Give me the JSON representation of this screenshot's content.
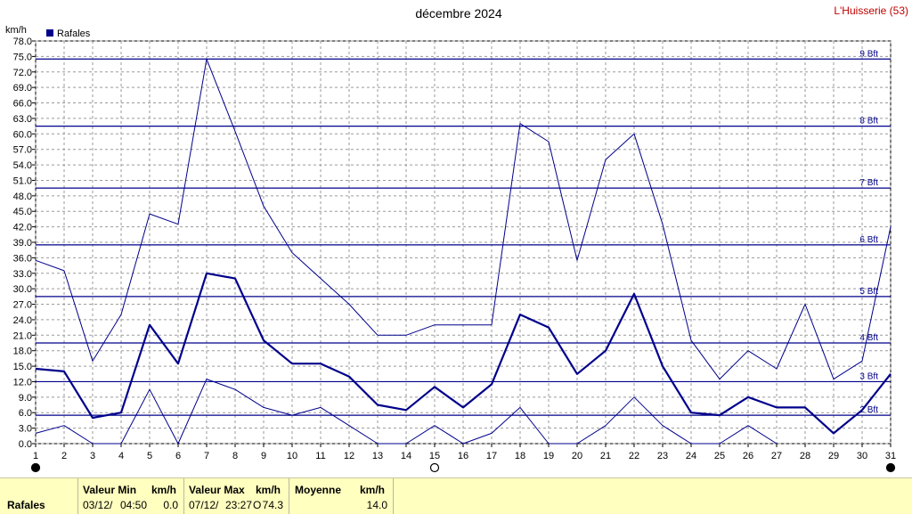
{
  "chart_data": {
    "type": "line",
    "title": "décembre 2024",
    "station": "L'Huisserie (53)",
    "y_unit": "km/h",
    "ylim": [
      0,
      78
    ],
    "yticks": [
      "0.0",
      "3.0",
      "6.0",
      "9.0",
      "12.0",
      "15.0",
      "18.0",
      "21.0",
      "24.0",
      "27.0",
      "30.0",
      "33.0",
      "36.0",
      "39.0",
      "42.0",
      "45.0",
      "48.0",
      "51.0",
      "54.0",
      "57.0",
      "60.0",
      "63.0",
      "66.0",
      "69.0",
      "72.0",
      "75.0",
      "78.0"
    ],
    "x": [
      1,
      2,
      3,
      4,
      5,
      6,
      7,
      8,
      9,
      10,
      11,
      12,
      13,
      14,
      15,
      16,
      17,
      18,
      19,
      20,
      21,
      22,
      23,
      24,
      25,
      26,
      27,
      28,
      29,
      30,
      31
    ],
    "legend": [
      {
        "name": "Rafales",
        "color": "#00008b"
      }
    ],
    "series": [
      {
        "role": "max",
        "values": [
          35.5,
          33.5,
          16,
          25,
          44.5,
          42.5,
          74.5,
          60.5,
          46,
          37,
          32,
          27,
          21,
          21,
          23,
          23,
          23,
          62,
          58.5,
          35.5,
          55,
          60,
          42.5,
          20,
          12.5,
          18,
          14.5,
          27,
          12.5,
          16,
          42
        ]
      },
      {
        "role": "mean",
        "values": [
          14.5,
          14,
          5,
          6,
          23,
          15.5,
          33,
          32,
          20,
          15.5,
          15.5,
          13,
          7.5,
          6.5,
          11,
          7,
          11.5,
          25,
          22.5,
          13.5,
          18,
          29,
          15,
          6,
          5.5,
          9,
          7,
          7,
          2,
          6.5,
          13.5
        ]
      },
      {
        "role": "min",
        "values": [
          2,
          3.5,
          0,
          0,
          10.5,
          0,
          12.5,
          10.5,
          7,
          5.5,
          7,
          3.5,
          0,
          0,
          3.5,
          0,
          2,
          7,
          0,
          0,
          3.5,
          9,
          3.5,
          0,
          0,
          3.5,
          0,
          null,
          null,
          null,
          null
        ]
      }
    ],
    "beaufort": [
      {
        "label": "2 Bft",
        "value": 5.5
      },
      {
        "label": "3 Bft",
        "value": 12
      },
      {
        "label": "4 Bft",
        "value": 19.5
      },
      {
        "label": "5 Bft",
        "value": 28.5
      },
      {
        "label": "6 Bft",
        "value": 38.5
      },
      {
        "label": "7 Bft",
        "value": 49.5
      },
      {
        "label": "8 Bft",
        "value": 61.5
      },
      {
        "label": "9 Bft",
        "value": 74.5
      }
    ],
    "moon_phases": [
      {
        "day": 1,
        "phase": "new"
      },
      {
        "day": 15,
        "phase": "full"
      },
      {
        "day": 31,
        "phase": "new"
      }
    ],
    "colors": {
      "line": "#00008b",
      "grid": "#9a9a9a",
      "title": "#000000",
      "station": "#c00000"
    }
  },
  "summary": {
    "series_label": "Rafales",
    "min_header": "Valeur Min",
    "min_unit": "km/h",
    "min_date": "03/12/",
    "min_time": "04:50",
    "min_value": "0.0",
    "max_header": "Valeur Max",
    "max_unit": "km/h",
    "max_date": "07/12/",
    "max_time": "23:27",
    "max_dir": "O",
    "max_value": "74.3",
    "avg_header": "Moyenne",
    "avg_unit": "km/h",
    "avg_value": "14.0"
  }
}
